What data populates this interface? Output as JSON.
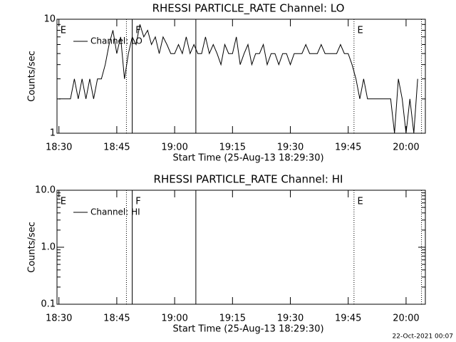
{
  "chart_data": [
    {
      "type": "line",
      "title": "RHESSI PARTICLE_RATE Channel: LO",
      "xlabel": "Start Time (25-Aug-13 18:29:30)",
      "ylabel": "Counts/sec",
      "log_y": true,
      "ylim": [
        1,
        10
      ],
      "yticks": [
        1,
        10
      ],
      "xlim": [
        "18:29:30",
        "20:05"
      ],
      "xticks": [
        "18:30",
        "18:45",
        "19:00",
        "19:15",
        "19:30",
        "19:45",
        "20:00"
      ],
      "legend": "upper left",
      "x": [
        "18:30",
        "18:31",
        "18:32",
        "18:33",
        "18:34",
        "18:35",
        "18:36",
        "18:37",
        "18:38",
        "18:39",
        "18:40",
        "18:41",
        "18:42",
        "18:43",
        "18:44",
        "18:45",
        "18:46",
        "18:47",
        "18:48",
        "18:49",
        "18:50",
        "18:51",
        "18:52",
        "18:53",
        "18:54",
        "18:55",
        "18:56",
        "18:57",
        "18:58",
        "18:59",
        "19:00",
        "19:01",
        "19:02",
        "19:03",
        "19:04",
        "19:05",
        "19:06",
        "19:07",
        "19:08",
        "19:09",
        "19:10",
        "19:11",
        "19:12",
        "19:13",
        "19:14",
        "19:15",
        "19:16",
        "19:17",
        "19:18",
        "19:19",
        "19:20",
        "19:21",
        "19:22",
        "19:23",
        "19:24",
        "19:25",
        "19:26",
        "19:27",
        "19:28",
        "19:29",
        "19:30",
        "19:31",
        "19:32",
        "19:33",
        "19:34",
        "19:35",
        "19:36",
        "19:37",
        "19:38",
        "19:39",
        "19:40",
        "19:41",
        "19:42",
        "19:43",
        "19:44",
        "19:45",
        "19:46",
        "19:47",
        "19:48",
        "19:49",
        "19:50",
        "19:51",
        "19:52",
        "19:53",
        "19:54",
        "19:55",
        "19:56",
        "19:57",
        "19:58",
        "19:59",
        "20:00",
        "20:01",
        "20:02",
        "20:03"
      ],
      "series": [
        {
          "name": "Channel: LO",
          "color": "#000000",
          "values": [
            2,
            2,
            2,
            2,
            3,
            2,
            3,
            2,
            3,
            2,
            3,
            3,
            4,
            6,
            8,
            5,
            7,
            3,
            5,
            7,
            6,
            9,
            7,
            8,
            6,
            7,
            5,
            7,
            6,
            5,
            5,
            6,
            5,
            7,
            5,
            6,
            5,
            5,
            7,
            5,
            6,
            5,
            4,
            6,
            5,
            5,
            7,
            4,
            5,
            6,
            4,
            5,
            5,
            6,
            4,
            5,
            5,
            4,
            5,
            5,
            4,
            5,
            5,
            5,
            6,
            5,
            5,
            5,
            6,
            5,
            5,
            5,
            5,
            6,
            5,
            5,
            4,
            3,
            2,
            3,
            2,
            2,
            2,
            2,
            2,
            2,
            2,
            1,
            3,
            2,
            1,
            2,
            1,
            3
          ]
        }
      ],
      "markers": [
        {
          "x": "18:47:30",
          "style": "dotted"
        },
        {
          "x": "18:49",
          "style": "solid"
        },
        {
          "x": "19:05:30",
          "style": "solid"
        },
        {
          "x": "19:46:30",
          "style": "dotted"
        },
        {
          "x": "20:04",
          "style": "dotted"
        }
      ],
      "annotations": [
        {
          "x": "18:30",
          "text": "E"
        },
        {
          "x": "18:49:30",
          "text": "F"
        },
        {
          "x": "19:47",
          "text": "E"
        }
      ]
    },
    {
      "type": "line",
      "title": "RHESSI PARTICLE_RATE Channel: HI",
      "xlabel": "Start Time (25-Aug-13 18:29:30)",
      "ylabel": "Counts/sec",
      "log_y": true,
      "ylim": [
        0.1,
        10
      ],
      "yticks": [
        0.1,
        {
          "value": 1,
          "label": "1.0"
        },
        {
          "value": 10,
          "label": "10.0"
        }
      ],
      "xlim": [
        "18:29:30",
        "20:05"
      ],
      "xticks": [
        "18:30",
        "18:45",
        "19:00",
        "19:15",
        "19:30",
        "19:45",
        "20:00"
      ],
      "legend": "upper left",
      "x": [],
      "series": [
        {
          "name": "Channel: HI",
          "color": "#000000",
          "values": []
        }
      ],
      "markers": [
        {
          "x": "18:47:30",
          "style": "dotted"
        },
        {
          "x": "18:49",
          "style": "solid"
        },
        {
          "x": "19:05:30",
          "style": "solid"
        },
        {
          "x": "19:46:30",
          "style": "dotted"
        },
        {
          "x": "20:04",
          "style": "dotted"
        }
      ],
      "annotations": [
        {
          "x": "18:30",
          "text": "E"
        },
        {
          "x": "18:49:30",
          "text": "F"
        },
        {
          "x": "19:47",
          "text": "E"
        }
      ]
    }
  ],
  "footer": "22-Oct-2021 00:07"
}
